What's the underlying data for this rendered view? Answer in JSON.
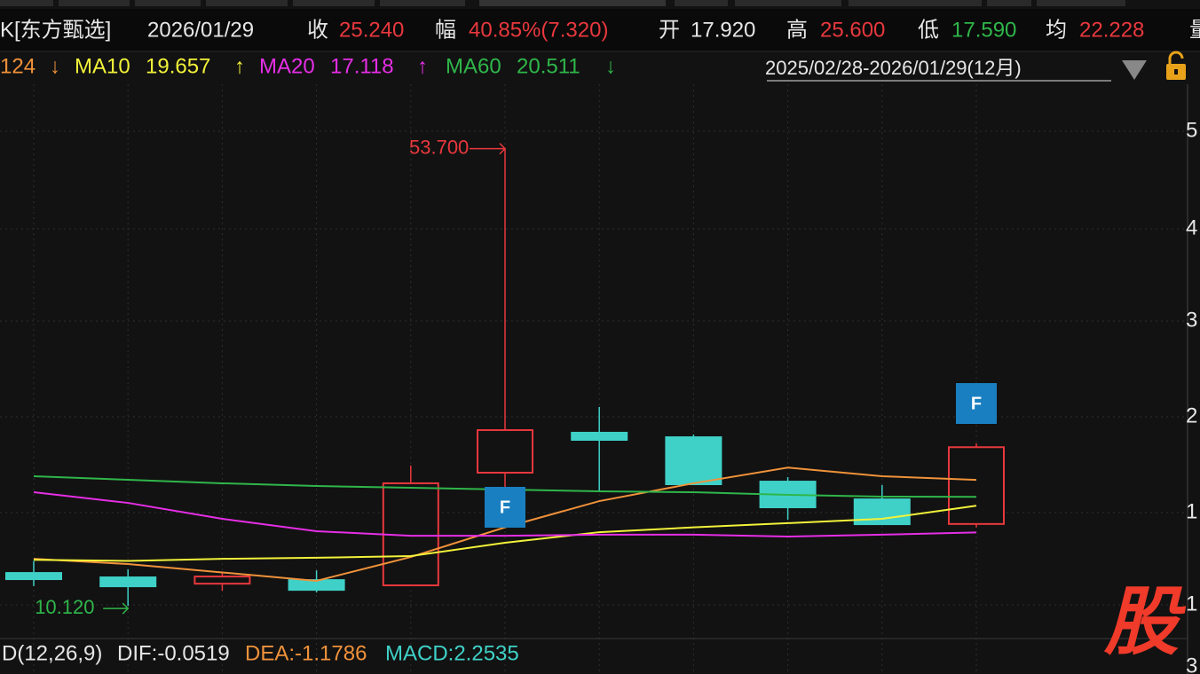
{
  "header": {
    "stock": "K[东方甄选]",
    "date": "2026/01/29",
    "fields": [
      {
        "label": "收",
        "value": "25.240",
        "tone": "up"
      },
      {
        "label": "幅",
        "value": "40.85%(7.320)",
        "tone": "up"
      },
      {
        "label": "开",
        "value": "17.920",
        "tone": "flat"
      },
      {
        "label": "高",
        "value": "25.600",
        "tone": "up"
      },
      {
        "label": "低",
        "value": "17.590",
        "tone": "down"
      },
      {
        "label": "均",
        "value": "22.228",
        "tone": "up"
      }
    ],
    "cut_label": "量"
  },
  "ma_legend": {
    "ma5_tail": "124",
    "arrows": [
      "↓",
      "↑",
      "↑",
      "↓"
    ]
  },
  "range_label": "2025/02/28-2026/01/29(12月)",
  "right_axis_labels": [
    "5",
    "4",
    "3",
    "2",
    "1",
    "1",
    "3"
  ],
  "markers": [
    "F",
    "F"
  ],
  "macd": {
    "name": "D(12,26,9)",
    "dif": "DIF:-0.0519",
    "dea": "DEA:-1.1786",
    "macd": "MACD:2.2535"
  },
  "logo": "股",
  "chart_data": {
    "type": "candlestick",
    "categories": [
      null,
      null,
      null,
      null,
      null,
      null,
      null,
      null,
      null,
      null,
      null
    ],
    "open": [
      13.25,
      12.83,
      12.23,
      12.57,
      12.07,
      22.81,
      26.62,
      26.19,
      21.96,
      20.27,
      17.92
    ],
    "high": [
      14.4,
      13.59,
      13.25,
      13.5,
      23.49,
      53.7,
      29.07,
      26.45,
      22.39,
      21.63,
      25.6
    ],
    "low": [
      12.0,
      10.12,
      11.56,
      11.39,
      12.07,
      21.46,
      20.95,
      21.71,
      18.33,
      17.9,
      17.59
    ],
    "close": [
      12.66,
      11.98,
      12.91,
      11.64,
      21.8,
      26.87,
      25.94,
      21.71,
      19.51,
      17.9,
      25.24
    ],
    "up_color": "#e8383d",
    "down_color": "#3fd1c8",
    "annotations": [
      "53.700",
      "10.120"
    ],
    "series": [
      {
        "color": "#f0923a",
        "values": [
          14.6,
          14.1,
          13.3,
          12.5,
          14.77,
          17.6,
          20.1,
          21.8,
          23.3,
          22.47,
          22.124
        ]
      },
      {
        "name": "MA10",
        "color": "#f2f23a",
        "values": [
          14.5,
          14.4,
          14.6,
          14.7,
          14.86,
          16.13,
          17.14,
          17.6,
          18.0,
          18.41,
          19.657
        ]
      },
      {
        "name": "MA20",
        "color": "#e62ee6",
        "values": [
          20.95,
          19.93,
          18.41,
          17.23,
          16.8,
          16.8,
          16.9,
          16.9,
          16.72,
          16.9,
          17.118
        ]
      },
      {
        "name": "MA60",
        "color": "#2fb64a",
        "values": [
          22.47,
          22.13,
          21.8,
          21.54,
          21.37,
          21.2,
          21.03,
          20.95,
          20.7,
          20.53,
          20.511
        ]
      }
    ],
    "ylim": [
      7,
      62.8
    ]
  }
}
